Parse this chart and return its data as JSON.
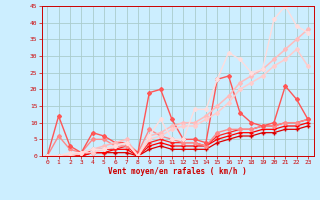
{
  "xlabel": "Vent moyen/en rafales ( km/h )",
  "background_color": "#cceeff",
  "grid_color": "#aacccc",
  "xlim": [
    -0.5,
    23.5
  ],
  "ylim": [
    0,
    45
  ],
  "yticks": [
    0,
    5,
    10,
    15,
    20,
    25,
    30,
    35,
    40,
    45
  ],
  "xticks": [
    0,
    1,
    2,
    3,
    4,
    5,
    6,
    7,
    8,
    9,
    10,
    11,
    12,
    13,
    14,
    15,
    16,
    17,
    18,
    19,
    20,
    21,
    22,
    23
  ],
  "series": [
    {
      "x": [
        0,
        1,
        2,
        3,
        4,
        5,
        6,
        7,
        8,
        9,
        10,
        11,
        12,
        13,
        14,
        15,
        16,
        17,
        18,
        19,
        20,
        21,
        22,
        23
      ],
      "y": [
        0,
        0,
        0,
        0,
        1,
        1,
        1,
        1,
        0,
        2,
        3,
        2,
        2,
        2,
        2,
        4,
        5,
        6,
        6,
        7,
        7,
        8,
        8,
        9
      ],
      "color": "#dd0000",
      "lw": 0.9,
      "marker": "+",
      "ms": 2.5
    },
    {
      "x": [
        0,
        1,
        2,
        3,
        4,
        5,
        6,
        7,
        8,
        9,
        10,
        11,
        12,
        13,
        14,
        15,
        16,
        17,
        18,
        19,
        20,
        21,
        22,
        23
      ],
      "y": [
        0,
        0,
        0,
        0,
        1,
        1,
        2,
        2,
        0,
        3,
        4,
        3,
        3,
        3,
        3,
        5,
        6,
        7,
        7,
        8,
        8,
        9,
        9,
        10
      ],
      "color": "#ff0000",
      "lw": 0.9,
      "marker": "+",
      "ms": 2.5
    },
    {
      "x": [
        0,
        1,
        2,
        3,
        4,
        5,
        6,
        7,
        8,
        9,
        10,
        11,
        12,
        13,
        14,
        15,
        16,
        17,
        18,
        19,
        20,
        21,
        22,
        23
      ],
      "y": [
        0,
        0,
        0,
        0,
        2,
        2,
        2,
        3,
        0,
        4,
        5,
        4,
        4,
        4,
        3,
        6,
        7,
        8,
        8,
        9,
        9,
        10,
        10,
        11
      ],
      "color": "#ff2222",
      "lw": 0.9,
      "marker": "+",
      "ms": 2.5
    },
    {
      "x": [
        0,
        1,
        2,
        3,
        4,
        5,
        6,
        7,
        8,
        9,
        10,
        11,
        12,
        13,
        14,
        15,
        16,
        17,
        18,
        19,
        20,
        21,
        22,
        23
      ],
      "y": [
        0,
        6,
        2,
        1,
        5,
        5,
        3,
        3,
        1,
        8,
        6,
        5,
        4,
        4,
        3,
        7,
        8,
        8,
        8,
        9,
        9,
        10,
        10,
        11
      ],
      "color": "#ff8888",
      "lw": 1.0,
      "marker": "D",
      "ms": 2.0
    },
    {
      "x": [
        0,
        1,
        2,
        3,
        4,
        5,
        6,
        7,
        8,
        9,
        10,
        11,
        12,
        13,
        14,
        15,
        16,
        17,
        18,
        19,
        20,
        21,
        22,
        23
      ],
      "y": [
        0,
        12,
        3,
        1,
        7,
        6,
        4,
        4,
        1,
        19,
        20,
        11,
        5,
        5,
        4,
        23,
        24,
        13,
        10,
        9,
        10,
        21,
        17,
        11
      ],
      "color": "#ff5555",
      "lw": 1.0,
      "marker": "D",
      "ms": 2.0
    },
    {
      "x": [
        0,
        1,
        2,
        3,
        4,
        5,
        6,
        7,
        8,
        9,
        10,
        11,
        12,
        13,
        14,
        15,
        16,
        17,
        18,
        19,
        20,
        21,
        22,
        23
      ],
      "y": [
        0,
        0,
        0,
        1,
        2,
        3,
        4,
        5,
        0,
        6,
        7,
        9,
        10,
        10,
        12,
        15,
        18,
        22,
        24,
        26,
        29,
        32,
        35,
        38
      ],
      "color": "#ffbbbb",
      "lw": 1.1,
      "marker": "D",
      "ms": 2.0
    },
    {
      "x": [
        0,
        1,
        2,
        3,
        4,
        5,
        6,
        7,
        8,
        9,
        10,
        11,
        12,
        13,
        14,
        15,
        16,
        17,
        18,
        19,
        20,
        21,
        22,
        23
      ],
      "y": [
        0,
        0,
        0,
        1,
        1,
        2,
        3,
        4,
        0,
        5,
        6,
        8,
        9,
        9,
        11,
        13,
        16,
        20,
        22,
        24,
        27,
        29,
        32,
        27
      ],
      "color": "#ffcccc",
      "lw": 1.1,
      "marker": "D",
      "ms": 2.0
    },
    {
      "x": [
        0,
        1,
        2,
        3,
        4,
        5,
        6,
        7,
        8,
        9,
        10,
        11,
        12,
        13,
        14,
        15,
        16,
        17,
        18,
        19,
        20,
        21,
        22,
        23
      ],
      "y": [
        0,
        0,
        1,
        1,
        2,
        2,
        3,
        4,
        0,
        6,
        11,
        5,
        5,
        14,
        14,
        23,
        31,
        29,
        25,
        26,
        41,
        45,
        39,
        37
      ],
      "color": "#ffdddd",
      "lw": 1.0,
      "marker": "D",
      "ms": 2.0
    }
  ]
}
